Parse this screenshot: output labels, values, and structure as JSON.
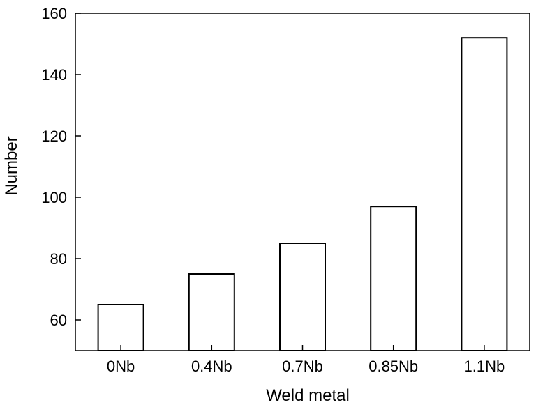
{
  "chart_data": {
    "type": "bar",
    "categories": [
      "0Nb",
      "0.4Nb",
      "0.7Nb",
      "0.85Nb",
      "1.1Nb"
    ],
    "values": [
      65,
      75,
      85,
      97,
      152
    ],
    "title": "",
    "xlabel": "Weld metal",
    "ylabel": "Number",
    "ylim": [
      50,
      160
    ],
    "yticks": [
      60,
      80,
      100,
      120,
      140,
      160
    ],
    "grid": false,
    "legend": "none",
    "bar_fill": "#ffffff",
    "bar_stroke": "#000000"
  }
}
